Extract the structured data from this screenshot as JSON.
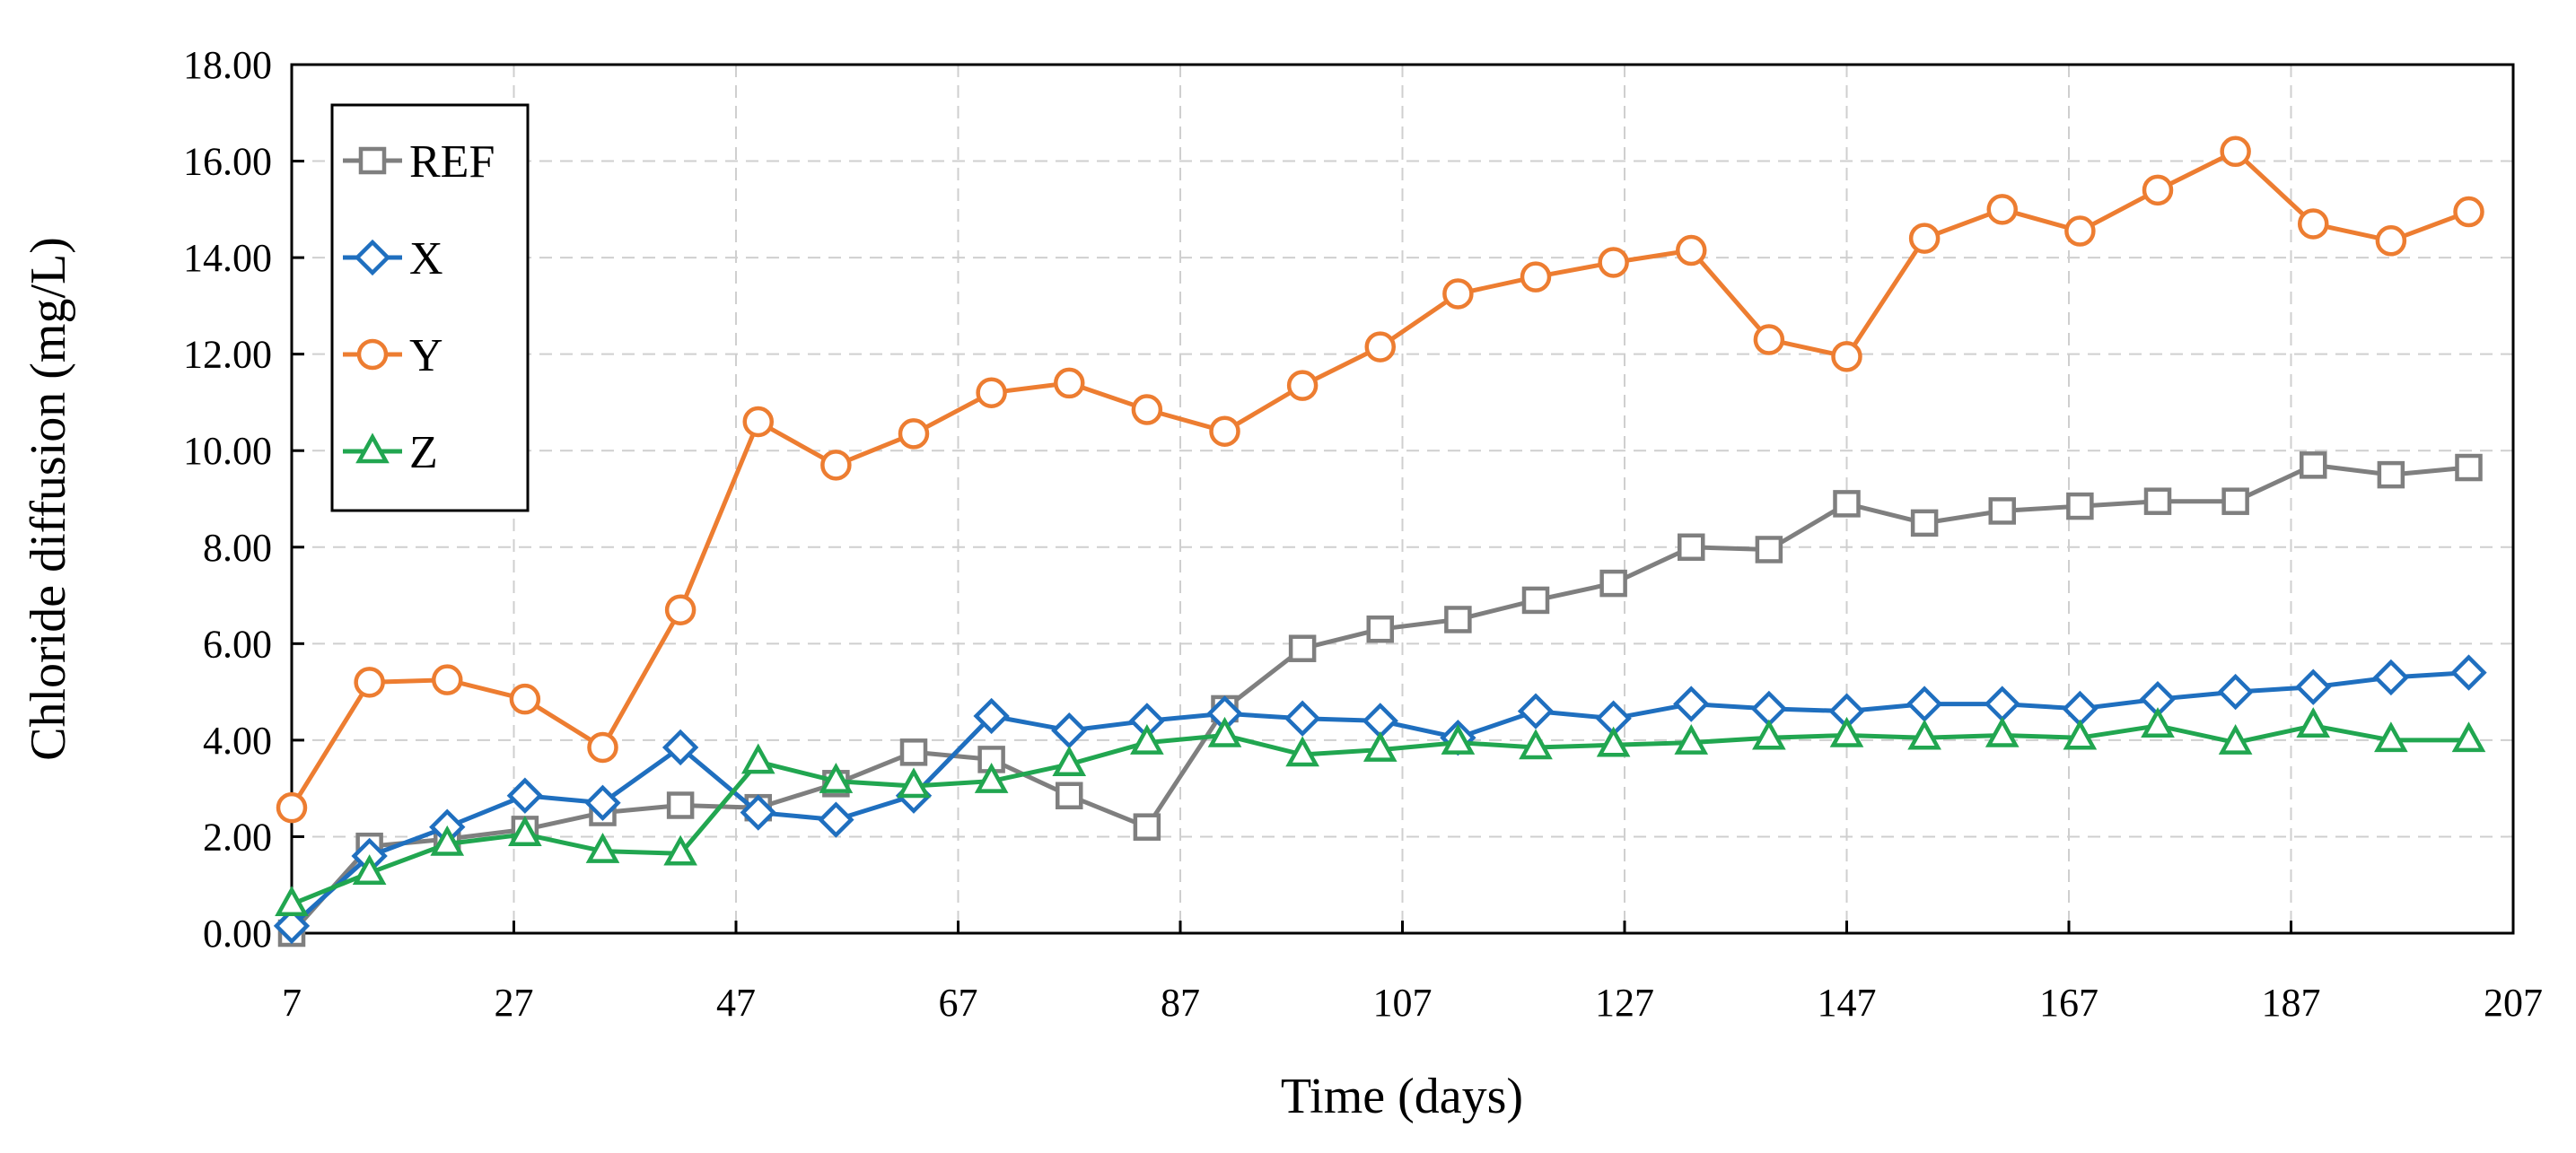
{
  "chart_data": {
    "type": "line",
    "title": "",
    "xlabel": "Time (days)",
    "ylabel": "Chloride diffusion (mg/L)",
    "xlim": [
      7,
      207
    ],
    "ylim": [
      0,
      18
    ],
    "xticks": [
      7,
      27,
      47,
      67,
      87,
      107,
      127,
      147,
      167,
      187,
      207
    ],
    "xtick_labels": [
      "7",
      "27",
      "47",
      "67",
      "87",
      "107",
      "127",
      "147",
      "167",
      "187",
      "207"
    ],
    "yticks": [
      0,
      2,
      4,
      6,
      8,
      10,
      12,
      14,
      16,
      18
    ],
    "ytick_labels": [
      "0.00",
      "2.00",
      "4.00",
      "6.00",
      "8.00",
      "10.00",
      "12.00",
      "14.00",
      "16.00",
      "18.00"
    ],
    "grid": true,
    "legend_position": "top-left",
    "x": [
      7,
      14,
      21,
      28,
      35,
      42,
      49,
      56,
      63,
      70,
      77,
      84,
      91,
      98,
      105,
      112,
      119,
      126,
      133,
      140,
      147,
      154,
      161,
      168,
      175,
      182,
      189,
      196,
      203
    ],
    "series": [
      {
        "name": "REF",
        "color": "#7f7f7f",
        "marker": "square",
        "values": [
          0.0,
          1.8,
          1.95,
          2.15,
          2.5,
          2.65,
          2.6,
          3.1,
          3.75,
          3.6,
          2.85,
          2.2,
          4.65,
          5.9,
          6.3,
          6.5,
          6.9,
          7.25,
          8.0,
          7.95,
          8.9,
          8.5,
          8.75,
          8.85,
          8.95,
          8.95,
          9.7,
          9.5,
          9.65
        ]
      },
      {
        "name": "X",
        "color": "#1f6fbf",
        "marker": "diamond",
        "values": [
          0.15,
          1.6,
          2.2,
          2.85,
          2.7,
          3.85,
          2.5,
          2.35,
          2.85,
          4.5,
          4.2,
          4.4,
          4.55,
          4.45,
          4.4,
          4.05,
          4.6,
          4.45,
          4.75,
          4.65,
          4.6,
          4.75,
          4.75,
          4.65,
          4.85,
          5.0,
          5.1,
          5.3,
          5.4
        ]
      },
      {
        "name": "Y",
        "color": "#ed7d31",
        "marker": "circle",
        "values": [
          2.6,
          5.2,
          5.25,
          4.85,
          3.85,
          6.7,
          10.6,
          9.7,
          10.35,
          11.2,
          11.4,
          10.85,
          10.4,
          11.35,
          12.15,
          13.25,
          13.6,
          13.9,
          14.15,
          12.3,
          11.95,
          14.4,
          15.0,
          14.55,
          15.4,
          16.2,
          14.7,
          14.35,
          14.95
        ]
      },
      {
        "name": "Z",
        "color": "#21a650",
        "marker": "triangle",
        "values": [
          0.6,
          1.25,
          1.85,
          2.05,
          1.7,
          1.65,
          3.55,
          3.15,
          3.05,
          3.15,
          3.5,
          3.95,
          4.1,
          3.7,
          3.8,
          3.95,
          3.85,
          3.9,
          3.95,
          4.05,
          4.1,
          4.05,
          4.1,
          4.05,
          4.3,
          3.95,
          4.3,
          4.0,
          4.0
        ]
      }
    ]
  }
}
